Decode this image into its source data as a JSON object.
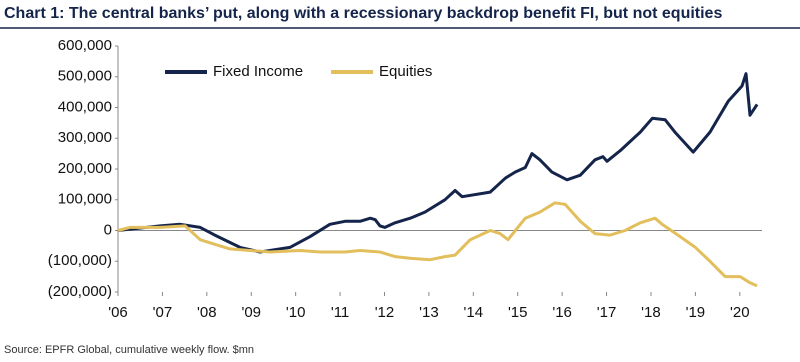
{
  "chart_data": {
    "type": "line",
    "title": "Chart 1: The central banks’ put, along with a recessionary backdrop benefit FI, but not equities",
    "source": "Source: EPFR Global, cumulative weekly flow. $mn",
    "xlim": [
      2006,
      2020.5
    ],
    "xticks": [
      {
        "value": 2006,
        "label": "'06"
      },
      {
        "value": 2007,
        "label": "'07"
      },
      {
        "value": 2008,
        "label": "'08"
      },
      {
        "value": 2009,
        "label": "'09"
      },
      {
        "value": 2010,
        "label": "'10"
      },
      {
        "value": 2011,
        "label": "'11"
      },
      {
        "value": 2012,
        "label": "'12"
      },
      {
        "value": 2013,
        "label": "'13"
      },
      {
        "value": 2014,
        "label": "'14"
      },
      {
        "value": 2015,
        "label": "'15"
      },
      {
        "value": 2016,
        "label": "'16"
      },
      {
        "value": 2017,
        "label": "'17"
      },
      {
        "value": 2018,
        "label": "'18"
      },
      {
        "value": 2019,
        "label": "'19"
      },
      {
        "value": 2020,
        "label": "'20"
      }
    ],
    "ylim": [
      -200000,
      600000
    ],
    "yticks": [
      {
        "value": -200000,
        "label": "(200,000)"
      },
      {
        "value": -100000,
        "label": "(100,000)"
      },
      0,
      {
        "value": 100000,
        "label": "100,000"
      },
      {
        "value": 200000,
        "label": "200,000"
      },
      {
        "value": 300000,
        "label": "300,000"
      },
      {
        "value": 400000,
        "label": "400,000"
      },
      {
        "value": 500000,
        "label": "500,000"
      },
      {
        "value": 600000,
        "label": "600,000"
      }
    ],
    "negative_tick_color": "#c00000",
    "grid": false,
    "legend_position": "top",
    "series": [
      {
        "name": "Fixed Income",
        "color": "#14244a",
        "x": [
          2006.0,
          2006.95,
          2007.4,
          2007.85,
          2008.18,
          2008.75,
          2009.2,
          2009.87,
          2010.32,
          2010.77,
          2011.11,
          2011.45,
          2011.68,
          2011.79,
          2011.9,
          2012.01,
          2012.24,
          2012.58,
          2012.91,
          2013.36,
          2013.59,
          2013.75,
          2014.38,
          2014.72,
          2014.94,
          2015.17,
          2015.32,
          2015.5,
          2015.77,
          2016.11,
          2016.41,
          2016.74,
          2016.92,
          2017.01,
          2017.31,
          2017.76,
          2018.03,
          2018.32,
          2018.54,
          2018.95,
          2019.33,
          2019.74,
          2020.05,
          2020.14,
          2020.23,
          2020.39
        ],
        "values": [
          0,
          15000,
          20000,
          10000,
          -15000,
          -55000,
          -70000,
          -55000,
          -20000,
          20000,
          30000,
          30000,
          40000,
          35000,
          15000,
          10000,
          25000,
          40000,
          60000,
          100000,
          130000,
          110000,
          125000,
          170000,
          190000,
          205000,
          250000,
          230000,
          190000,
          165000,
          180000,
          230000,
          240000,
          225000,
          260000,
          320000,
          365000,
          360000,
          320000,
          255000,
          320000,
          420000,
          470000,
          510000,
          375000,
          410000
        ]
      },
      {
        "name": "Equities",
        "color": "#e2bf5c",
        "x": [
          2006.0,
          2006.27,
          2006.95,
          2007.51,
          2007.85,
          2008.18,
          2008.52,
          2008.97,
          2009.42,
          2010.1,
          2010.55,
          2011.11,
          2011.45,
          2011.9,
          2012.24,
          2012.58,
          2013.03,
          2013.36,
          2013.59,
          2013.93,
          2014.38,
          2014.6,
          2014.78,
          2015.17,
          2015.5,
          2015.84,
          2016.07,
          2016.41,
          2016.74,
          2017.08,
          2017.42,
          2017.76,
          2018.09,
          2018.25,
          2018.66,
          2019.0,
          2019.33,
          2019.67,
          2020.01,
          2020.23,
          2020.39
        ],
        "values": [
          0,
          10000,
          10000,
          15000,
          -30000,
          -45000,
          -60000,
          -65000,
          -70000,
          -65000,
          -70000,
          -70000,
          -65000,
          -70000,
          -85000,
          -90000,
          -95000,
          -85000,
          -80000,
          -30000,
          0,
          -10000,
          -30000,
          40000,
          60000,
          90000,
          85000,
          30000,
          -10000,
          -15000,
          0,
          25000,
          40000,
          20000,
          -20000,
          -55000,
          -100000,
          -150000,
          -150000,
          -170000,
          -180000
        ]
      }
    ]
  }
}
